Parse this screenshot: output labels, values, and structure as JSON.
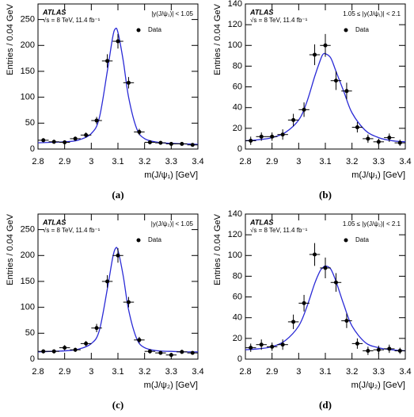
{
  "chart_data": [
    {
      "type": "scatter",
      "panel_label": "(a)",
      "experiment": "ATLAS",
      "energy": "√s = 8 TeV, 11.4 fb⁻¹",
      "selection": "|y(J/ψ₁)| < 1.05",
      "xlabel": "m(J/ψ₁) [GeV]",
      "ylabel": "Entries / 0.04 GeV",
      "xlim": [
        2.8,
        3.4
      ],
      "xticks": [
        2.8,
        2.9,
        3,
        3.1,
        3.2,
        3.3,
        3.4
      ],
      "ylim": [
        0,
        280
      ],
      "yticks": [
        0,
        50,
        100,
        150,
        200,
        250
      ],
      "series": [
        {
          "name": "Data",
          "color": "#000000",
          "xerr": 0.02,
          "x": [
            2.82,
            2.86,
            2.9,
            2.94,
            2.98,
            3.02,
            3.06,
            3.1,
            3.14,
            3.18,
            3.22,
            3.26,
            3.3,
            3.34,
            3.38
          ],
          "values": [
            17,
            14,
            13,
            20,
            27,
            55,
            170,
            208,
            128,
            33,
            13,
            12,
            10,
            10,
            8
          ],
          "errors": [
            4,
            4,
            4,
            4,
            5,
            7,
            13,
            14,
            11,
            6,
            4,
            3,
            3,
            3,
            3
          ]
        }
      ],
      "fit": {
        "color": "#2a2ad6",
        "x": [
          2.8,
          2.85,
          2.9,
          2.95,
          3.0,
          3.03,
          3.06,
          3.08,
          3.09,
          3.1,
          3.12,
          3.14,
          3.17,
          3.2,
          3.25,
          3.3,
          3.35,
          3.4
        ],
        "values": [
          12,
          13,
          14,
          17,
          30,
          60,
          150,
          215,
          232,
          225,
          170,
          100,
          40,
          20,
          13,
          11,
          10,
          9
        ]
      }
    },
    {
      "type": "scatter",
      "panel_label": "(b)",
      "experiment": "ATLAS",
      "energy": "√s = 8 TeV, 11.4 fb⁻¹",
      "selection": "1.05 ≤ |y(J/ψ₁)| < 2.1",
      "xlabel": "m(J/ψ₁) [GeV]",
      "ylabel": "Entries / 0.04 GeV",
      "xlim": [
        2.8,
        3.4
      ],
      "xticks": [
        2.8,
        2.9,
        3,
        3.1,
        3.2,
        3.3,
        3.4
      ],
      "ylim": [
        0,
        140
      ],
      "yticks": [
        0,
        20,
        40,
        60,
        80,
        100,
        120,
        140
      ],
      "series": [
        {
          "name": "Data",
          "color": "#000000",
          "xerr": 0.02,
          "x": [
            2.82,
            2.86,
            2.9,
            2.94,
            2.98,
            3.02,
            3.06,
            3.1,
            3.14,
            3.18,
            3.22,
            3.26,
            3.3,
            3.34,
            3.38
          ],
          "values": [
            8,
            12,
            12,
            14,
            28,
            38,
            91,
            100,
            66,
            56,
            21,
            10,
            7,
            11,
            6
          ],
          "errors": [
            4,
            4,
            4,
            5,
            6,
            7,
            10,
            11,
            9,
            8,
            5,
            4,
            3,
            4,
            3
          ]
        }
      ],
      "fit": {
        "color": "#2a2ad6",
        "x": [
          2.8,
          2.85,
          2.9,
          2.95,
          3.0,
          3.03,
          3.06,
          3.08,
          3.09,
          3.1,
          3.12,
          3.14,
          3.17,
          3.2,
          3.25,
          3.3,
          3.35,
          3.4
        ],
        "values": [
          8,
          9,
          11,
          16,
          28,
          45,
          70,
          85,
          91,
          92,
          88,
          75,
          55,
          35,
          18,
          11,
          8,
          7
        ]
      }
    },
    {
      "type": "scatter",
      "panel_label": "(c)",
      "experiment": "ATLAS",
      "energy": "√s = 8 TeV, 11.4 fb⁻¹",
      "selection": "|y(J/ψ₂)| < 1.05",
      "xlabel": "m(J/ψ₂) [GeV]",
      "ylabel": "Entries / 0.04 GeV",
      "xlim": [
        2.8,
        3.4
      ],
      "xticks": [
        2.8,
        2.9,
        3,
        3.1,
        3.2,
        3.3,
        3.4
      ],
      "ylim": [
        0,
        280
      ],
      "yticks": [
        0,
        50,
        100,
        150,
        200,
        250
      ],
      "series": [
        {
          "name": "Data",
          "color": "#000000",
          "xerr": 0.02,
          "x": [
            2.82,
            2.86,
            2.9,
            2.94,
            2.98,
            3.02,
            3.06,
            3.1,
            3.14,
            3.18,
            3.22,
            3.26,
            3.3,
            3.34,
            3.38
          ],
          "values": [
            15,
            15,
            22,
            18,
            30,
            60,
            150,
            200,
            110,
            37,
            15,
            12,
            8,
            14,
            12
          ],
          "errors": [
            4,
            4,
            5,
            4,
            5,
            8,
            12,
            14,
            10,
            6,
            4,
            3,
            3,
            4,
            3
          ]
        }
      ],
      "fit": {
        "color": "#2a2ad6",
        "x": [
          2.8,
          2.85,
          2.9,
          2.95,
          3.0,
          3.03,
          3.06,
          3.08,
          3.09,
          3.1,
          3.12,
          3.14,
          3.17,
          3.2,
          3.25,
          3.3,
          3.35,
          3.4
        ],
        "values": [
          14,
          15,
          16,
          19,
          30,
          55,
          135,
          195,
          213,
          210,
          160,
          95,
          40,
          22,
          16,
          15,
          14,
          14
        ]
      }
    },
    {
      "type": "scatter",
      "panel_label": "(d)",
      "experiment": "ATLAS",
      "energy": "√s = 8 TeV, 11.4 fb⁻¹",
      "selection": "1.05 ≤ |y(J/ψ₂)| < 2.1",
      "xlabel": "m(J/ψ₂) [GeV]",
      "ylabel": "Entries / 0.04 GeV",
      "xlim": [
        2.8,
        3.4
      ],
      "xticks": [
        2.8,
        2.9,
        3,
        3.1,
        3.2,
        3.3,
        3.4
      ],
      "ylim": [
        0,
        140
      ],
      "yticks": [
        0,
        20,
        40,
        60,
        80,
        100,
        120,
        140
      ],
      "series": [
        {
          "name": "Data",
          "color": "#000000",
          "xerr": 0.02,
          "x": [
            2.82,
            2.86,
            2.9,
            2.94,
            2.98,
            3.02,
            3.06,
            3.1,
            3.14,
            3.18,
            3.22,
            3.26,
            3.3,
            3.34,
            3.38
          ],
          "values": [
            11,
            14,
            12,
            14,
            36,
            54,
            101,
            88,
            74,
            37,
            15,
            8,
            9,
            10,
            8
          ],
          "errors": [
            4,
            5,
            4,
            5,
            7,
            8,
            11,
            10,
            9,
            7,
            5,
            4,
            4,
            4,
            3
          ]
        }
      ],
      "fit": {
        "color": "#2a2ad6",
        "x": [
          2.8,
          2.85,
          2.9,
          2.95,
          3.0,
          3.03,
          3.06,
          3.08,
          3.09,
          3.1,
          3.12,
          3.14,
          3.17,
          3.2,
          3.25,
          3.3,
          3.35,
          3.4
        ],
        "values": [
          9,
          10,
          12,
          18,
          32,
          50,
          73,
          85,
          88,
          90,
          87,
          75,
          52,
          32,
          16,
          11,
          9,
          8
        ]
      }
    }
  ]
}
